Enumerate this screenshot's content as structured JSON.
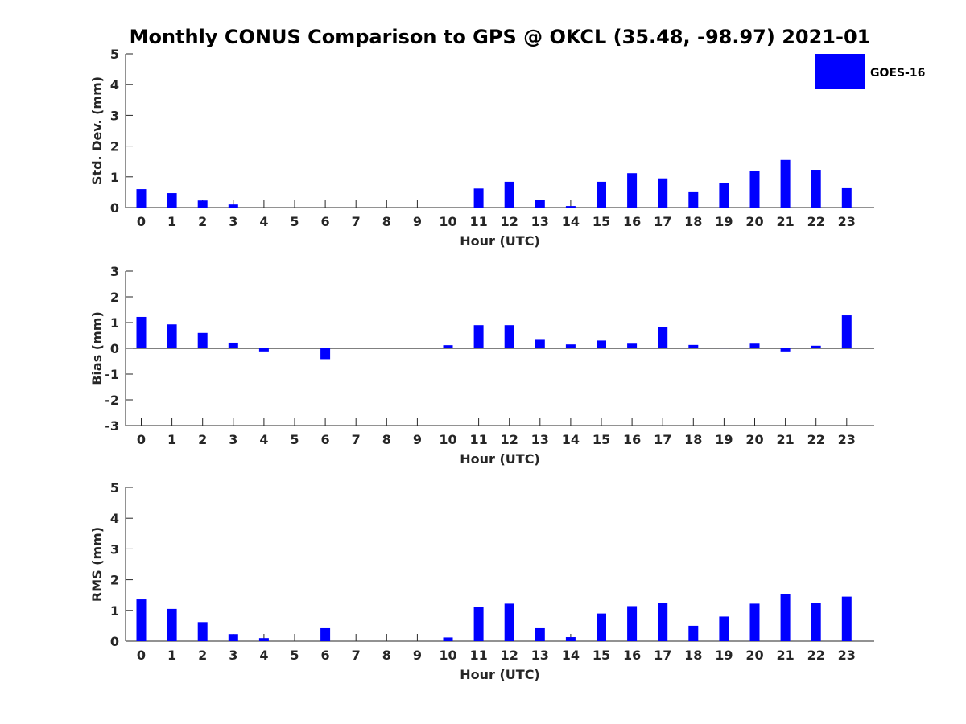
{
  "title": "Monthly CONUS Comparison to GPS @ OKCL (35.48, -98.97) 2021-01",
  "legend": {
    "label": "GOES-16",
    "color": "#0000ff",
    "position": "top-right"
  },
  "chart_data": [
    {
      "type": "bar",
      "xlabel": "Hour (UTC)",
      "ylabel": "Std. Dev. (mm)",
      "ylim": [
        0,
        5
      ],
      "yticks": [
        0,
        1,
        2,
        3,
        4,
        5
      ],
      "categories": [
        "0",
        "1",
        "2",
        "3",
        "4",
        "5",
        "6",
        "7",
        "8",
        "9",
        "10",
        "11",
        "12",
        "13",
        "14",
        "15",
        "16",
        "17",
        "18",
        "19",
        "20",
        "21",
        "22",
        "23"
      ],
      "series": [
        {
          "name": "GOES-16",
          "values": [
            0.6,
            0.47,
            0.23,
            0.1,
            0,
            0,
            0,
            0,
            0,
            0,
            0,
            0.62,
            0.84,
            0.24,
            0.05,
            0.84,
            1.12,
            0.95,
            0.5,
            0.81,
            1.2,
            1.55,
            1.23,
            0.63
          ]
        }
      ]
    },
    {
      "type": "bar",
      "xlabel": "Hour (UTC)",
      "ylabel": "Bias (mm)",
      "ylim": [
        -3,
        3
      ],
      "yticks": [
        -3,
        -2,
        -1,
        0,
        1,
        2,
        3
      ],
      "categories": [
        "0",
        "1",
        "2",
        "3",
        "4",
        "5",
        "6",
        "7",
        "8",
        "9",
        "10",
        "11",
        "12",
        "13",
        "14",
        "15",
        "16",
        "17",
        "18",
        "19",
        "20",
        "21",
        "22",
        "23"
      ],
      "series": [
        {
          "name": "GOES-16",
          "values": [
            1.22,
            0.93,
            0.6,
            0.22,
            -0.12,
            0,
            -0.42,
            0,
            0,
            0,
            0.12,
            0.9,
            0.9,
            0.33,
            0.15,
            0.3,
            0.18,
            0.82,
            0.13,
            0.03,
            0.18,
            -0.12,
            0.1,
            1.28
          ]
        }
      ]
    },
    {
      "type": "bar",
      "xlabel": "Hour (UTC)",
      "ylabel": "RMS (mm)",
      "ylim": [
        0,
        5
      ],
      "yticks": [
        0,
        1,
        2,
        3,
        4,
        5
      ],
      "categories": [
        "0",
        "1",
        "2",
        "3",
        "4",
        "5",
        "6",
        "7",
        "8",
        "9",
        "10",
        "11",
        "12",
        "13",
        "14",
        "15",
        "16",
        "17",
        "18",
        "19",
        "20",
        "21",
        "22",
        "23"
      ],
      "series": [
        {
          "name": "GOES-16",
          "values": [
            1.36,
            1.05,
            0.62,
            0.23,
            0.1,
            0,
            0.42,
            0,
            0,
            0,
            0.12,
            1.1,
            1.22,
            0.42,
            0.13,
            0.9,
            1.14,
            1.24,
            0.5,
            0.8,
            1.22,
            1.53,
            1.25,
            1.45
          ]
        }
      ]
    }
  ]
}
